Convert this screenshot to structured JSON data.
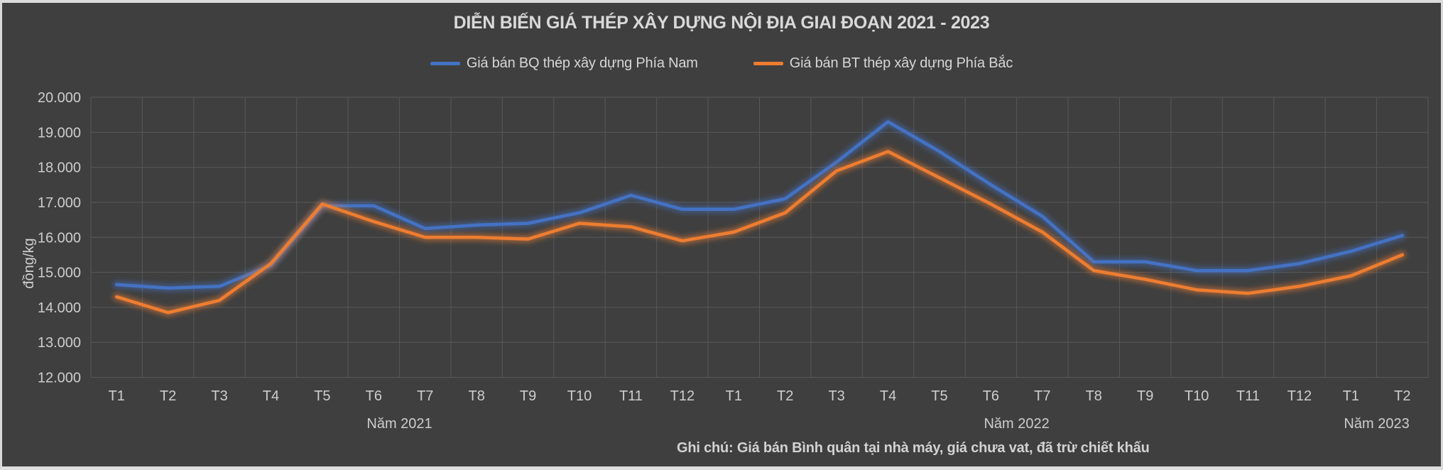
{
  "window": {
    "background_color": "#3F3F3F",
    "frame_color": "#DCDCDC",
    "text_color": "#D6D6D6",
    "gridline_color": "#585858"
  },
  "title": "DIỄN BIẾN GIÁ THÉP XÂY DỰNG NỘI ĐỊA GIAI ĐOẠN 2021 - 2023",
  "legend": {
    "items": [
      {
        "label": "Giá bán BQ thép xây dựng Phía Nam",
        "color": "#4472C4"
      },
      {
        "label": "Giá bán BT thép xây dựng Phía Bắc",
        "color": "#ED7D31"
      }
    ]
  },
  "footnote": "Ghi chú: Giá bán Bình quân tại nhà máy, giá chưa vat, đã trừ chiết khấu",
  "chart_data": {
    "type": "line",
    "title": "DIỄN BIẾN GIÁ THÉP XÂY DỰNG NỘI ĐỊA GIAI ĐOẠN 2021 - 2023",
    "xlabel": "",
    "ylabel": "đồng/kg",
    "ylim": [
      12000,
      20000
    ],
    "grid": true,
    "legend_position": "top",
    "y_ticks": [
      "20.000",
      "19.000",
      "18.000",
      "17.000",
      "16.000",
      "15.000",
      "14.000",
      "13.000",
      "12.000"
    ],
    "categories": [
      "T1",
      "T2",
      "T3",
      "T4",
      "T5",
      "T6",
      "T7",
      "T8",
      "T9",
      "T10",
      "T11",
      "T12",
      "T1",
      "T2",
      "T3",
      "T4",
      "T5",
      "T6",
      "T7",
      "T8",
      "T9",
      "T10",
      "T11",
      "T12",
      "T1",
      "T2"
    ],
    "groups": [
      {
        "label": "Năm 2021",
        "from": 0,
        "to": 11
      },
      {
        "label": "Năm 2022",
        "from": 12,
        "to": 23
      },
      {
        "label": "Năm 2023",
        "from": 24,
        "to": 25
      }
    ],
    "series": [
      {
        "name": "Giá bán BQ thép xây dựng Phía Nam",
        "color": "#4472C4",
        "values": [
          14650,
          14550,
          14600,
          15200,
          16900,
          16900,
          16250,
          16350,
          16400,
          16700,
          17200,
          16800,
          16800,
          17100,
          18150,
          19300,
          18450,
          17500,
          16600,
          15300,
          15300,
          15050,
          15050,
          15250,
          15600,
          16050
        ]
      },
      {
        "name": "Giá bán BT thép xây dựng Phía Bắc",
        "color": "#ED7D31",
        "values": [
          14300,
          13850,
          14200,
          15250,
          16950,
          16450,
          16000,
          16000,
          15950,
          16400,
          16300,
          15900,
          16150,
          16700,
          17900,
          18450,
          17700,
          16950,
          16150,
          15050,
          14800,
          14500,
          14400,
          14600,
          14900,
          15500
        ]
      }
    ]
  }
}
